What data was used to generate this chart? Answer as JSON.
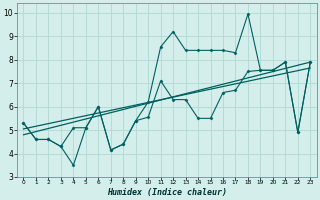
{
  "xlabel": "Humidex (Indice chaleur)",
  "bg_color": "#d4eeeb",
  "grid_color": "#b0d8d4",
  "line_color": "#006060",
  "xlim": [
    -0.5,
    23.5
  ],
  "ylim": [
    3,
    10.4
  ],
  "xticks": [
    0,
    1,
    2,
    3,
    4,
    5,
    6,
    7,
    8,
    9,
    10,
    11,
    12,
    13,
    14,
    15,
    16,
    17,
    18,
    19,
    20,
    21,
    22,
    23
  ],
  "yticks": [
    3,
    4,
    5,
    6,
    7,
    8,
    9,
    10
  ],
  "series1_x": [
    0,
    1,
    2,
    3,
    4,
    5,
    6,
    7,
    8,
    9,
    10,
    11,
    12,
    13,
    14,
    15,
    16,
    17,
    18,
    19,
    20,
    21,
    22,
    23
  ],
  "series1_y": [
    5.3,
    4.6,
    4.6,
    4.3,
    3.5,
    5.1,
    6.0,
    4.15,
    4.4,
    5.4,
    6.2,
    8.55,
    9.2,
    8.4,
    8.4,
    8.4,
    8.4,
    8.3,
    9.95,
    7.55,
    7.55,
    7.9,
    4.9,
    7.9
  ],
  "series2_x": [
    0,
    1,
    2,
    3,
    4,
    5,
    6,
    7,
    8,
    9,
    10,
    11,
    12,
    13,
    14,
    15,
    16,
    17,
    18,
    19,
    20,
    21,
    22,
    23
  ],
  "series2_y": [
    5.3,
    4.6,
    4.6,
    4.3,
    5.1,
    5.1,
    6.0,
    4.15,
    4.4,
    5.4,
    5.55,
    7.1,
    6.3,
    6.3,
    5.5,
    5.5,
    6.6,
    6.7,
    7.5,
    7.55,
    7.55,
    7.9,
    4.9,
    7.9
  ],
  "trend1_x": [
    0,
    23
  ],
  "trend1_y": [
    4.8,
    7.9
  ],
  "trend2_x": [
    0,
    23
  ],
  "trend2_y": [
    5.05,
    7.65
  ],
  "xlabel_fontsize": 6.0,
  "xtick_fontsize": 4.2,
  "ytick_fontsize": 5.5
}
